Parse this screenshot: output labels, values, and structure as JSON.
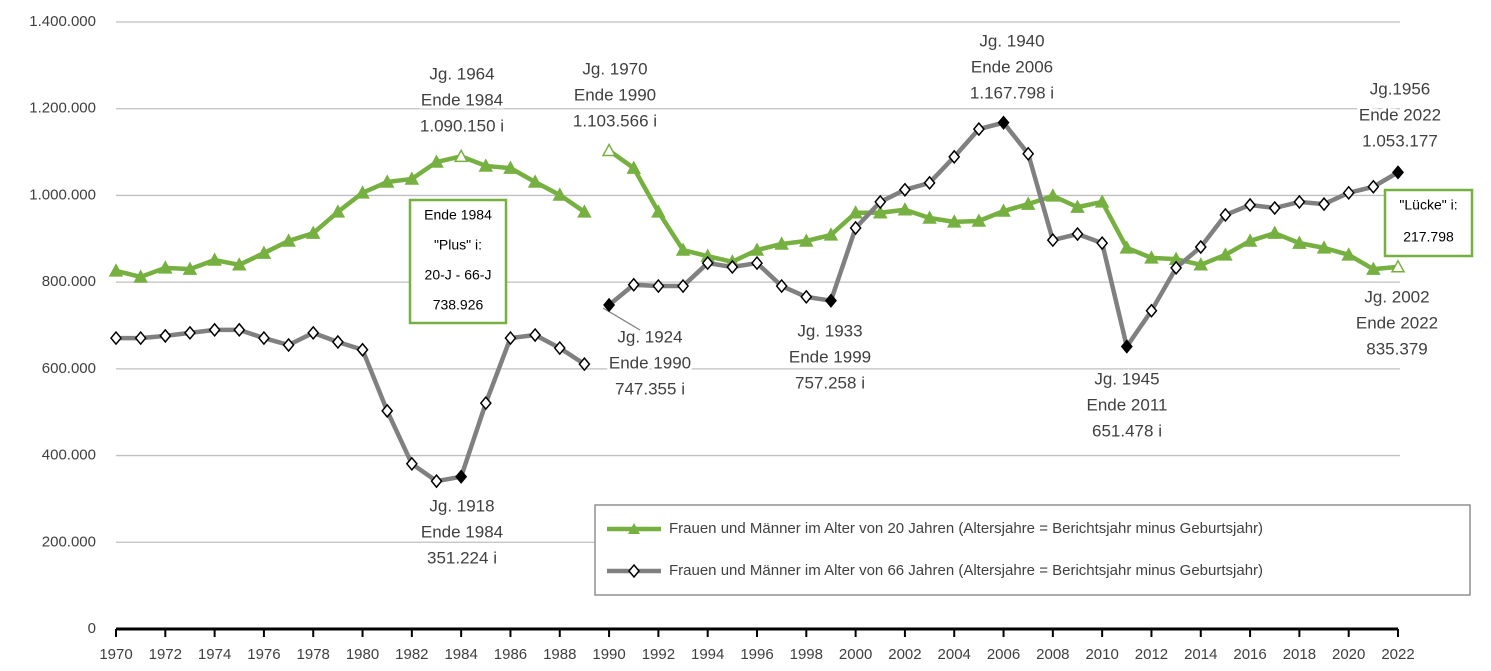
{
  "chart_data": {
    "type": "line",
    "x": [
      1970,
      1971,
      1972,
      1973,
      1974,
      1975,
      1976,
      1977,
      1978,
      1979,
      1980,
      1981,
      1982,
      1983,
      1984,
      1985,
      1986,
      1987,
      1988,
      1989,
      1990,
      1991,
      1992,
      1993,
      1994,
      1995,
      1996,
      1997,
      1998,
      1999,
      2000,
      2001,
      2002,
      2003,
      2004,
      2005,
      2006,
      2007,
      2008,
      2009,
      2010,
      2011,
      2012,
      2013,
      2014,
      2015,
      2016,
      2017,
      2018,
      2019,
      2020,
      2021,
      2022
    ],
    "xlim": [
      1970,
      2022
    ],
    "xticks": [
      1970,
      1972,
      1974,
      1976,
      1978,
      1980,
      1982,
      1984,
      1986,
      1988,
      1990,
      1992,
      1994,
      1996,
      1998,
      2000,
      2002,
      2004,
      2006,
      2008,
      2010,
      2012,
      2014,
      2016,
      2018,
      2020,
      2022
    ],
    "gap_between": [
      1989,
      1990
    ],
    "ylim": [
      0,
      1400000
    ],
    "yticks": [
      0,
      {
        "value": 200000,
        "label": "200.000"
      },
      {
        "value": 400000,
        "label": "400.000"
      },
      {
        "value": 600000,
        "label": "600.000"
      },
      {
        "value": 800000,
        "label": "800.000"
      },
      {
        "value": 1000000,
        "label": "1.000.000"
      },
      {
        "value": 1200000,
        "label": "1.200.000"
      },
      {
        "value": 1400000,
        "label": "1.400.000"
      }
    ],
    "grid": true,
    "legend": "lower right",
    "series": [
      {
        "name": "Frauen und Männer im Alter von 20 Jahren (Altersjahre = Berichtsjahr minus Geburtsjahr)",
        "color": "#76b041",
        "marker": "triangle",
        "highlight_x": [
          1984,
          1990,
          2022
        ],
        "values": [
          826000,
          812000,
          833000,
          830000,
          851000,
          840000,
          867000,
          895000,
          913000,
          962000,
          1006000,
          1031000,
          1038000,
          1077000,
          1090150,
          1068000,
          1063000,
          1031000,
          1001000,
          962000,
          1103566,
          1063000,
          962000,
          874000,
          860000,
          847000,
          874000,
          888000,
          895000,
          909000,
          960000,
          960000,
          967000,
          948000,
          939000,
          941000,
          964000,
          980000,
          999000,
          973000,
          985000,
          879000,
          856000,
          853000,
          840000,
          863000,
          895000,
          913000,
          890000,
          879000,
          863000,
          830000,
          835379
        ]
      },
      {
        "name": "Frauen und Männer im Alter von 66 Jahren (Altersjahre = Berichtsjahr minus Geburtsjahr)",
        "color": "#808080",
        "marker": "diamond",
        "highlight_x": [
          1984,
          1990,
          1999,
          2006,
          2011,
          2022
        ],
        "values": [
          671000,
          671000,
          676000,
          683000,
          690000,
          690000,
          671000,
          655000,
          683000,
          662000,
          644000,
          503000,
          381000,
          341000,
          351224,
          521000,
          671000,
          678000,
          648000,
          611000,
          747355,
          794000,
          791000,
          791000,
          844000,
          835000,
          844000,
          791000,
          766000,
          757258,
          925000,
          985000,
          1013000,
          1029000,
          1089000,
          1153000,
          1167798,
          1096000,
          897000,
          911000,
          890000,
          651478,
          734000,
          833000,
          881000,
          955000,
          978000,
          971000,
          985000,
          980000,
          1006000,
          1020000,
          1053177
        ]
      }
    ],
    "annotations": [
      {
        "lines": [
          "Jg. 1964",
          "Ende 1984",
          "1.090.150 i"
        ]
      },
      {
        "lines": [
          "Jg. 1970",
          "Ende 1990",
          "1.103.566 i"
        ]
      },
      {
        "lines": [
          "Jg. 1940",
          "Ende 2006",
          "1.167.798 i"
        ]
      },
      {
        "lines": [
          "Jg.1956",
          "Ende 2022",
          "1.053.177"
        ]
      },
      {
        "lines": [
          "Jg. 1924",
          "Ende 1990",
          "747.355 i"
        ]
      },
      {
        "lines": [
          "Jg. 1933",
          "Ende 1999",
          "757.258 i"
        ]
      },
      {
        "lines": [
          "Jg. 1918",
          "Ende 1984",
          "351.224 i"
        ]
      },
      {
        "lines": [
          "Jg. 1945",
          "Ende 2011",
          "651.478 i"
        ]
      },
      {
        "lines": [
          "Jg. 2002",
          "Ende 2022",
          "835.379"
        ]
      }
    ],
    "boxes": [
      {
        "lines": [
          "Ende 1984",
          "\"Plus\" i:",
          "20-J - 66-J",
          "738.926"
        ]
      },
      {
        "lines": [
          "\"Lücke\" i:",
          "217.798"
        ]
      }
    ]
  }
}
